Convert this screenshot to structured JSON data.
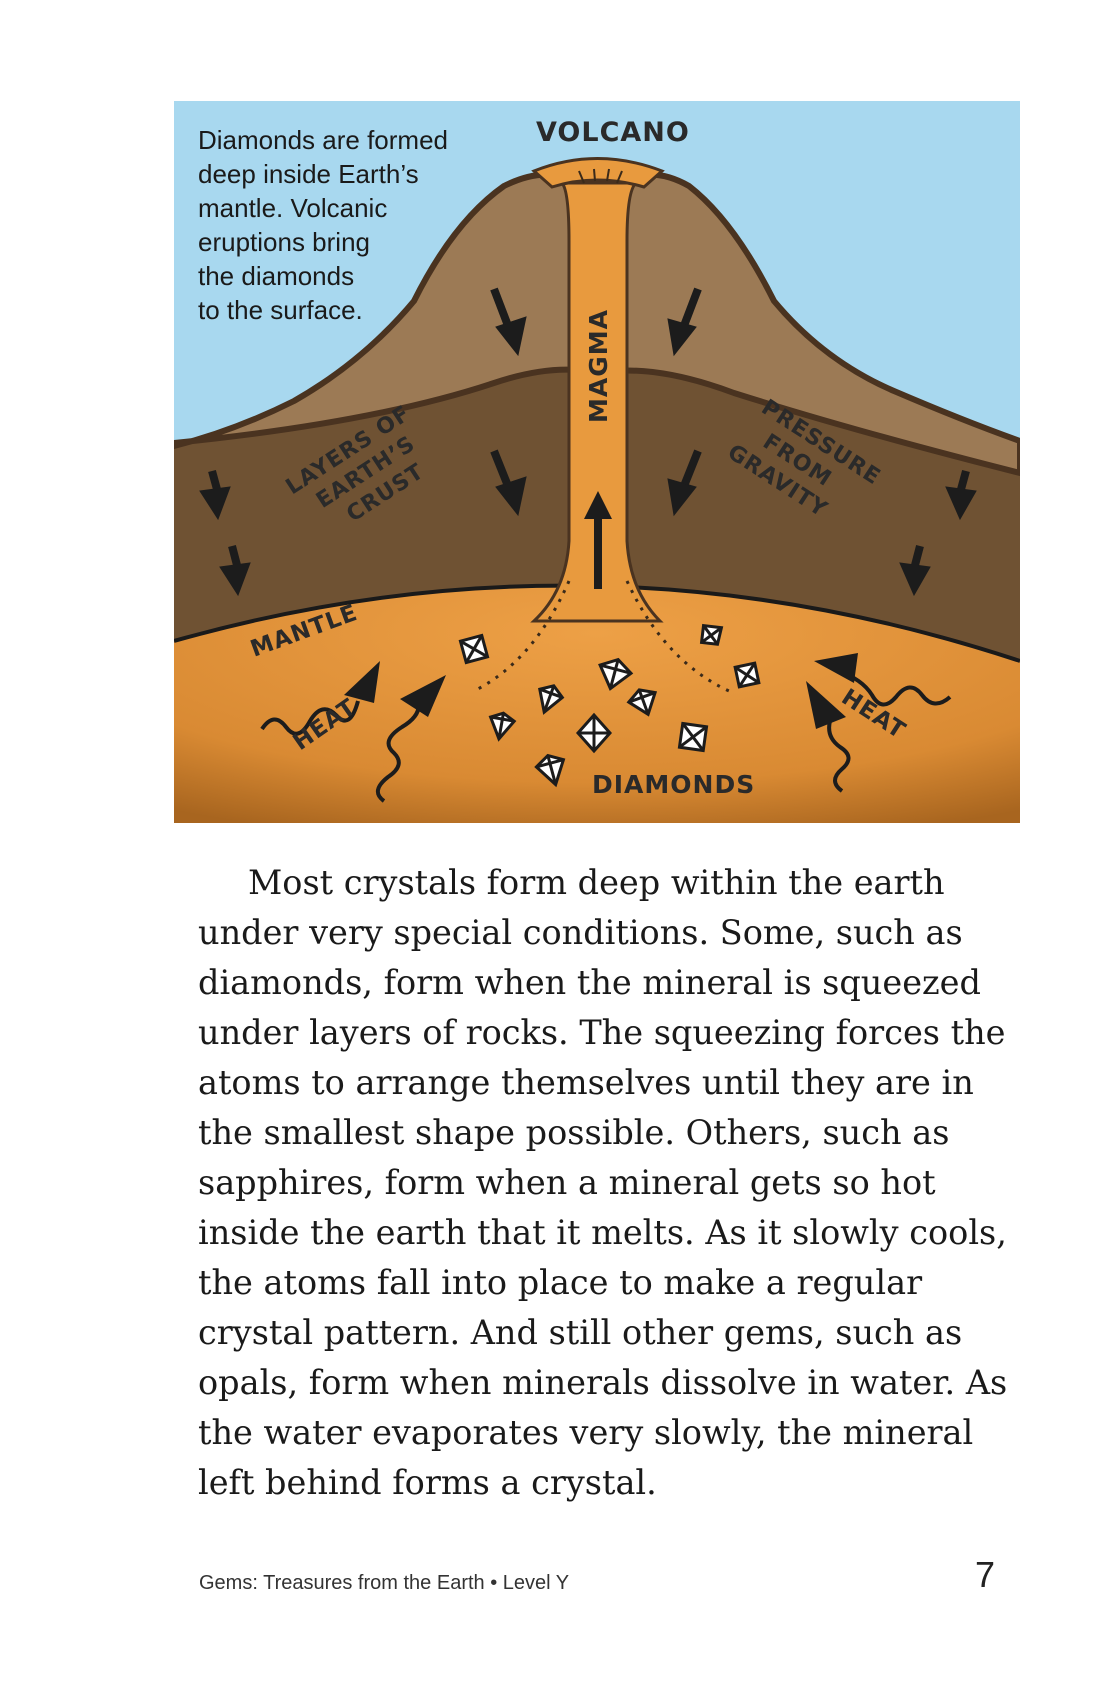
{
  "figure": {
    "caption_lines": [
      "Diamonds are formed",
      "deep inside Earth’s",
      "mantle. Volcanic",
      "eruptions bring",
      "the diamonds",
      "to the surface."
    ],
    "labels": {
      "volcano": "VOLCANO",
      "magma": "MAGMA",
      "crust_lines": [
        "LAYERS OF",
        "EARTH’S",
        "CRUST"
      ],
      "pressure_lines": [
        "PRESSURE",
        "FROM",
        "GRAVITY"
      ],
      "mantle": "MANTLE",
      "heat_left": "HEAT",
      "heat_right": "HEAT",
      "diamonds": "DIAMONDS"
    },
    "colors": {
      "sky": "#a8d8ef",
      "upper_crust": "#9c7a55",
      "lower_crust": "#6f5233",
      "mantle": "#e0923a",
      "magma": "#e89a3e",
      "outline": "#4a3320"
    }
  },
  "body": {
    "paragraph": "Most crystals form deep within the earth under very special conditions. Some, such as diamonds, form when the mineral is squeezed under layers of rocks. The squeezing forces the atoms to arrange themselves until they are in the smallest shape possible. Others, such as sapphires, form when a mineral gets so hot inside the earth that it melts. As it slowly cools, the atoms fall into place to make a regular crystal pattern. And still other gems, such as opals, form when minerals dissolve in water. As the water evaporates very slowly, the mineral left behind forms a crystal."
  },
  "footer": {
    "title": "Gems: Treasures from the Earth • Level Y",
    "page_number": "7"
  }
}
